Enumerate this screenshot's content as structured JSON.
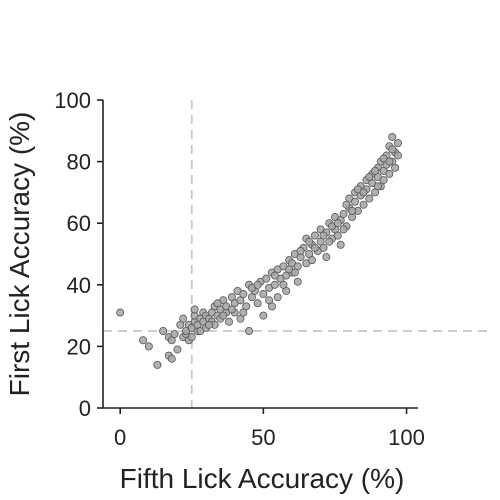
{
  "chart_data": {
    "type": "scatter",
    "title": "",
    "xlabel": "Fifth Lick Accuracy (%)",
    "ylabel": "First Lick Accuracy (%)",
    "xlim": [
      -6,
      104
    ],
    "ylim": [
      0,
      100
    ],
    "xticks": [
      "0",
      "50",
      "100"
    ],
    "yticks": [
      "0",
      "20",
      "40",
      "60",
      "80",
      "100"
    ],
    "grid": false,
    "legend": "none",
    "reference_lines": [
      {
        "orientation": "vertical",
        "x": 25,
        "style": "dashed"
      },
      {
        "orientation": "horizontal",
        "y": 25,
        "style": "dashed"
      }
    ],
    "colors": {
      "marker_fill": "#a9a9a9",
      "marker_edge": "#555555",
      "reference_line": "#c8c8c8",
      "axis": "#222222"
    },
    "series": [
      {
        "points": [
          [
            0,
            31
          ],
          [
            8,
            22
          ],
          [
            10,
            20
          ],
          [
            13,
            14
          ],
          [
            15,
            25
          ],
          [
            17,
            23
          ],
          [
            17,
            17
          ],
          [
            18,
            16
          ],
          [
            18,
            22
          ],
          [
            19,
            24
          ],
          [
            20,
            19
          ],
          [
            21,
            27
          ],
          [
            22,
            23
          ],
          [
            22,
            29
          ],
          [
            23,
            24
          ],
          [
            23,
            25
          ],
          [
            24,
            27
          ],
          [
            24,
            22
          ],
          [
            25,
            26
          ],
          [
            25,
            23
          ],
          [
            26,
            28
          ],
          [
            26,
            30
          ],
          [
            27,
            25
          ],
          [
            27,
            27
          ],
          [
            28,
            29
          ],
          [
            28,
            25
          ],
          [
            29,
            31
          ],
          [
            29,
            28
          ],
          [
            30,
            26
          ],
          [
            30,
            30
          ],
          [
            31,
            29
          ],
          [
            32,
            31
          ],
          [
            32,
            28
          ],
          [
            33,
            33
          ],
          [
            33,
            27
          ],
          [
            34,
            30
          ],
          [
            35,
            32
          ],
          [
            35,
            29
          ],
          [
            36,
            35
          ],
          [
            37,
            31
          ],
          [
            37,
            33
          ],
          [
            38,
            28
          ],
          [
            39,
            36
          ],
          [
            40,
            34
          ],
          [
            40,
            31
          ],
          [
            41,
            38
          ],
          [
            42,
            29
          ],
          [
            42,
            35
          ],
          [
            43,
            37
          ],
          [
            44,
            33
          ],
          [
            45,
            40
          ],
          [
            45,
            25
          ],
          [
            46,
            36
          ],
          [
            47,
            38
          ],
          [
            48,
            34
          ],
          [
            49,
            41
          ],
          [
            50,
            37
          ],
          [
            50,
            30
          ],
          [
            51,
            42
          ],
          [
            52,
            39
          ],
          [
            53,
            44
          ],
          [
            53,
            33
          ],
          [
            54,
            40
          ],
          [
            55,
            45
          ],
          [
            55,
            36
          ],
          [
            56,
            42
          ],
          [
            57,
            46
          ],
          [
            58,
            43
          ],
          [
            58,
            38
          ],
          [
            59,
            48
          ],
          [
            60,
            44
          ],
          [
            60,
            47
          ],
          [
            61,
            50
          ],
          [
            62,
            46
          ],
          [
            62,
            41
          ],
          [
            63,
            49
          ],
          [
            64,
            52
          ],
          [
            65,
            47
          ],
          [
            65,
            55
          ],
          [
            66,
            50
          ],
          [
            67,
            53
          ],
          [
            67,
            48
          ],
          [
            68,
            56
          ],
          [
            69,
            51
          ],
          [
            70,
            54
          ],
          [
            70,
            58
          ],
          [
            71,
            52
          ],
          [
            72,
            57
          ],
          [
            72,
            49
          ],
          [
            73,
            60
          ],
          [
            74,
            55
          ],
          [
            75,
            58
          ],
          [
            75,
            62
          ],
          [
            76,
            56
          ],
          [
            77,
            61
          ],
          [
            77,
            53
          ],
          [
            78,
            63
          ],
          [
            79,
            59
          ],
          [
            80,
            65
          ],
          [
            80,
            68
          ],
          [
            81,
            62
          ],
          [
            82,
            67
          ],
          [
            82,
            70
          ],
          [
            83,
            64
          ],
          [
            84,
            69
          ],
          [
            84,
            72
          ],
          [
            85,
            66
          ],
          [
            86,
            71
          ],
          [
            86,
            74
          ],
          [
            87,
            68
          ],
          [
            88,
            73
          ],
          [
            88,
            76
          ],
          [
            89,
            70
          ],
          [
            90,
            75
          ],
          [
            90,
            78
          ],
          [
            91,
            72
          ],
          [
            91,
            80
          ],
          [
            92,
            77
          ],
          [
            92,
            74
          ],
          [
            93,
            82
          ],
          [
            93,
            79
          ],
          [
            94,
            76
          ],
          [
            94,
            85
          ],
          [
            95,
            88
          ],
          [
            95,
            80
          ],
          [
            96,
            83
          ],
          [
            96,
            78
          ],
          [
            97,
            86
          ],
          [
            26,
            32
          ],
          [
            31,
            27
          ],
          [
            34,
            34
          ],
          [
            36,
            30
          ],
          [
            39,
            32
          ],
          [
            43,
            31
          ],
          [
            46,
            39
          ],
          [
            48,
            40
          ],
          [
            52,
            35
          ],
          [
            54,
            43
          ],
          [
            57,
            40
          ],
          [
            59,
            45
          ],
          [
            61,
            44
          ],
          [
            63,
            51
          ],
          [
            66,
            54
          ],
          [
            68,
            52
          ],
          [
            71,
            56
          ],
          [
            73,
            54
          ],
          [
            74,
            59
          ],
          [
            76,
            60
          ],
          [
            78,
            58
          ],
          [
            79,
            66
          ],
          [
            81,
            64
          ],
          [
            83,
            71
          ],
          [
            85,
            70
          ],
          [
            87,
            75
          ],
          [
            89,
            77
          ],
          [
            90,
            72
          ],
          [
            92,
            81
          ],
          [
            94,
            80
          ],
          [
            95,
            84
          ],
          [
            97,
            82
          ]
        ]
      }
    ]
  }
}
